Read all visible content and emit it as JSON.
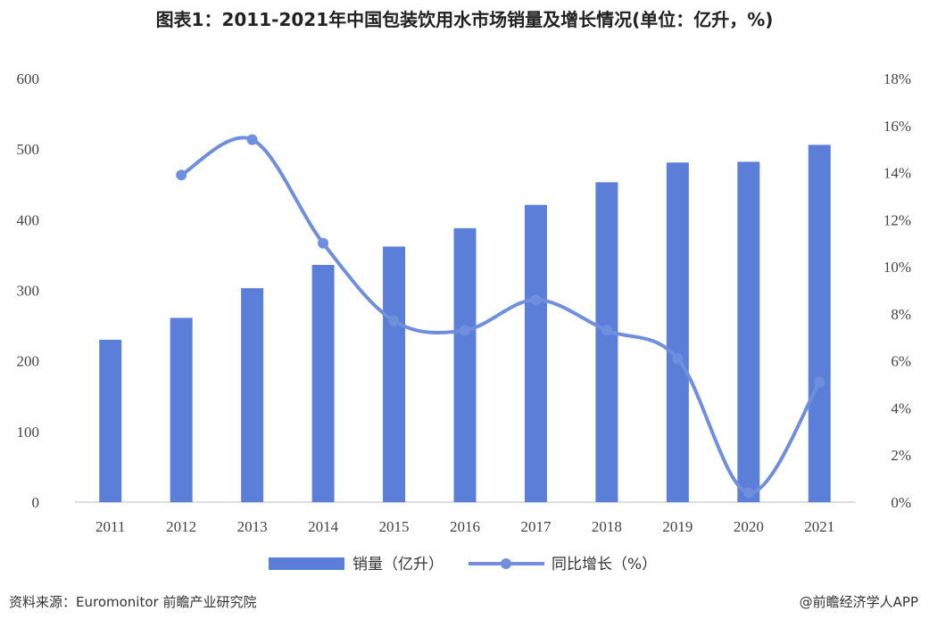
{
  "chart_data": {
    "type": "bar+line",
    "title": "图表1：2011-2021年中国包装饮用水市场销量及增长情况(单位：亿升，%)",
    "categories": [
      "2011",
      "2012",
      "2013",
      "2014",
      "2015",
      "2016",
      "2017",
      "2018",
      "2019",
      "2020",
      "2021"
    ],
    "series": [
      {
        "name": "销量（亿升）",
        "type": "bar",
        "axis": "left",
        "color": "#5b7fd9",
        "values": [
          230,
          261,
          303,
          336,
          362,
          388,
          421,
          453,
          481,
          482,
          506
        ]
      },
      {
        "name": "同比增长（%）",
        "type": "line",
        "axis": "right",
        "color": "#6f8fde",
        "values": [
          null,
          13.9,
          15.4,
          11.0,
          7.7,
          7.3,
          8.6,
          7.3,
          6.1,
          0.4,
          5.1
        ]
      }
    ],
    "y_left": {
      "min": 0,
      "max": 600,
      "ticks": [
        "0",
        "100",
        "200",
        "300",
        "400",
        "500",
        "600"
      ]
    },
    "y_right": {
      "min": 0,
      "max": 18,
      "ticks": [
        "0%",
        "2%",
        "4%",
        "6%",
        "8%",
        "10%",
        "12%",
        "14%",
        "16%",
        "18%"
      ]
    },
    "grid": false,
    "legend_position": "bottom"
  },
  "footer": {
    "source": "资料来源：Euromonitor 前瞻产业研究院",
    "brand": "@前瞻经济学人APP"
  }
}
